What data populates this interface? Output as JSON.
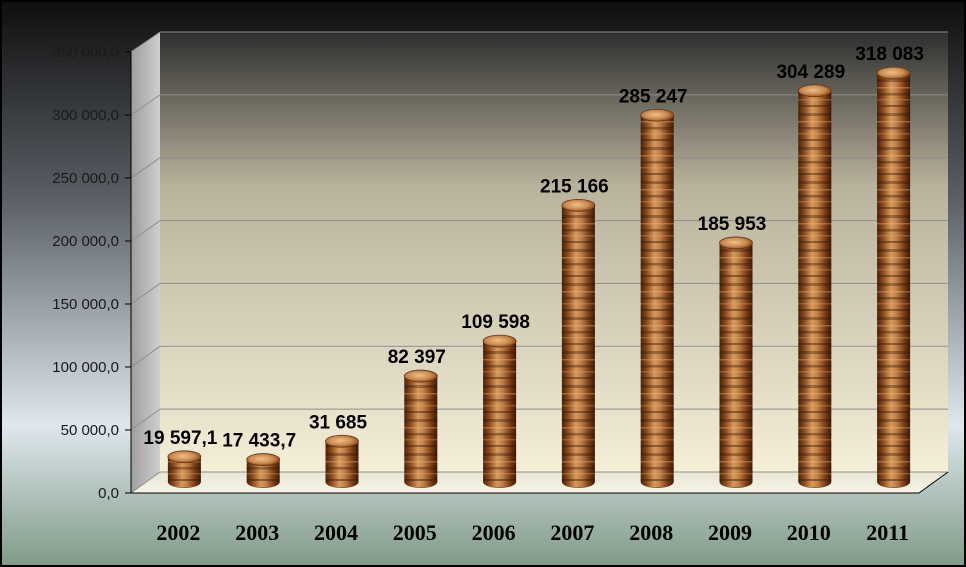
{
  "chart_data": {
    "type": "bar",
    "categories": [
      "2002",
      "2003",
      "2004",
      "2005",
      "2006",
      "2007",
      "2008",
      "2009",
      "2010",
      "2011"
    ],
    "values": [
      19597.1,
      17433.7,
      31685,
      82397,
      109598,
      215166,
      285247,
      185953,
      304289,
      318083
    ],
    "value_labels": [
      "19 597,1",
      "17 433,7",
      "31 685",
      "82 397",
      "109 598",
      "215 166",
      "285 247",
      "185 953",
      "304 289",
      "318 083"
    ],
    "y_ticks": [
      0,
      50000,
      100000,
      150000,
      200000,
      250000,
      300000,
      350000
    ],
    "y_tick_labels": [
      "0,0",
      "50 000,0",
      "100 000,0",
      "150 000,0",
      "200 000,0",
      "250 000,0",
      "300 000,0",
      "350 000,0"
    ],
    "ylim": [
      0,
      350000
    ],
    "title": "",
    "xlabel": "",
    "ylabel": "",
    "grid": true,
    "legend": "none",
    "bar_style": "3d-cylinder-wood-texture",
    "colors": {
      "bar_base": "#9a5a2a",
      "bar_light": "#e2a76a",
      "bar_dark": "#5a2c10",
      "wall_top": "#3a3a3a",
      "wall_bottom": "#f4ecd6",
      "background_top": "#111111",
      "background_bottom": "#7f9a86"
    }
  }
}
